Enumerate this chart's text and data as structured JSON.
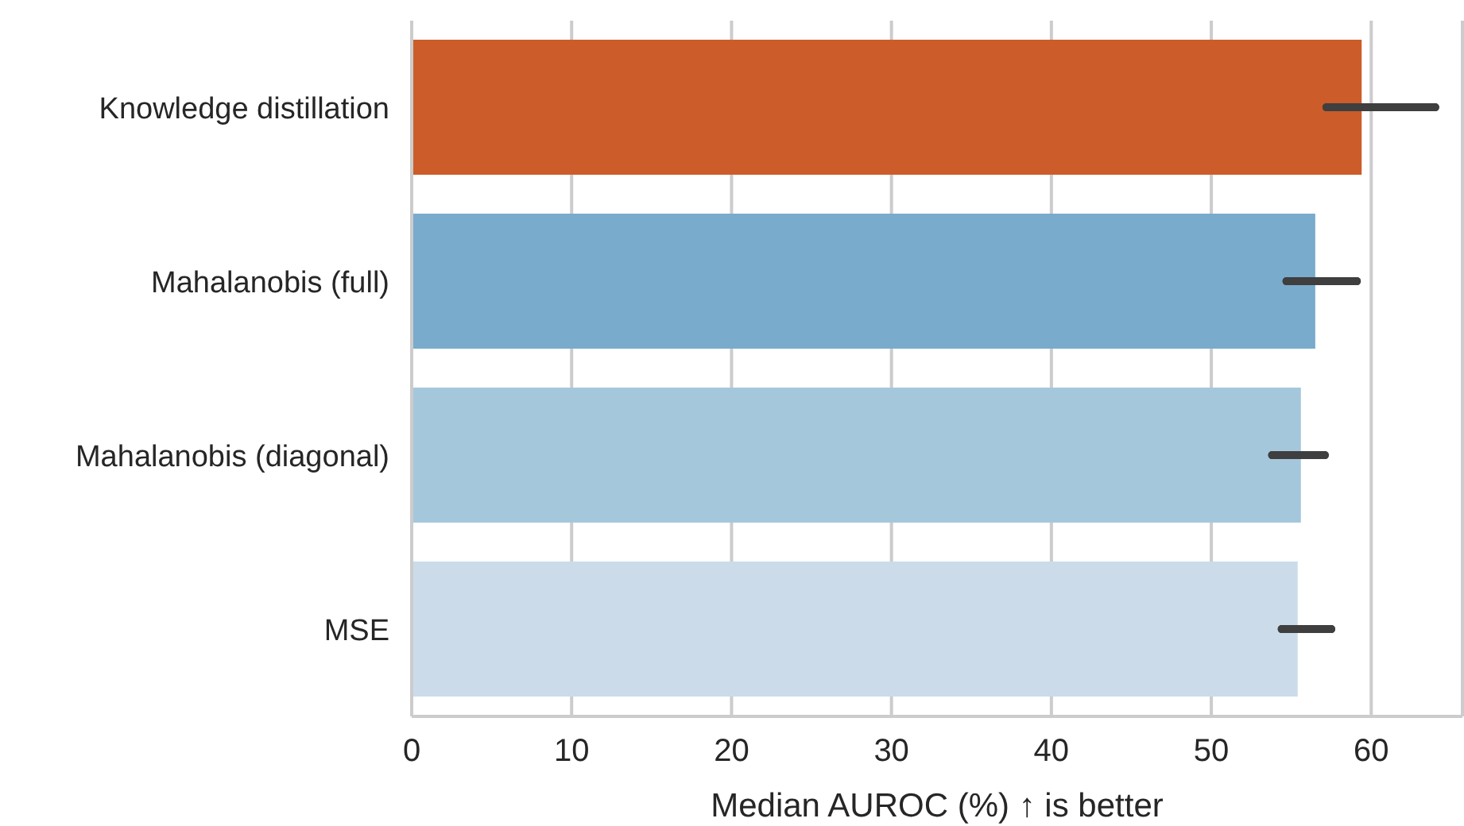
{
  "chart_data": {
    "type": "bar",
    "orientation": "horizontal",
    "xlabel": "Median AUROC (%) ↑ is better",
    "categories": [
      "Knowledge distillation",
      "Mahalanobis (full)",
      "Mahalanobis (diagonal)",
      "MSE"
    ],
    "values": [
      59.4,
      56.5,
      55.6,
      55.4
    ],
    "colors": [
      "#cc5c29",
      "#79abcd",
      "#a5c7dc",
      "#cbdbea"
    ],
    "errors": [
      [
        57.2,
        64.0
      ],
      [
        54.7,
        59.1
      ],
      [
        53.8,
        57.1
      ],
      [
        54.4,
        57.5
      ]
    ],
    "xlim": [
      0,
      65.7
    ],
    "xticks": [
      0,
      10,
      20,
      30,
      40,
      50,
      60
    ],
    "grid": "x"
  }
}
